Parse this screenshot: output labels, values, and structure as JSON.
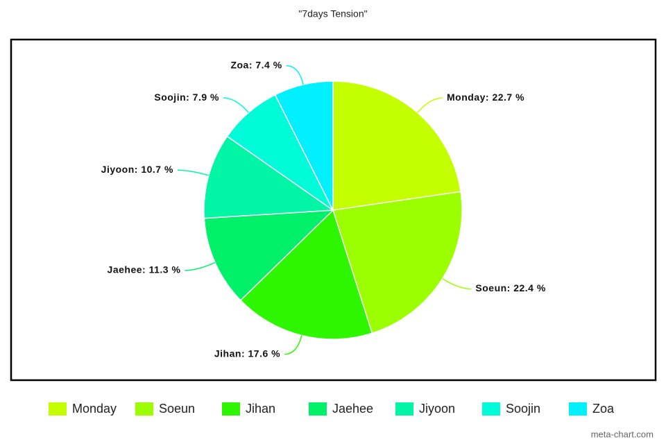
{
  "chart_data": {
    "type": "pie",
    "title": "\"7days Tension\"",
    "categories": [
      "Monday",
      "Soeun",
      "Jihan",
      "Jaehee",
      "Jiyoon",
      "Soojin",
      "Zoa"
    ],
    "values": [
      22.7,
      22.4,
      17.6,
      11.3,
      10.7,
      7.9,
      7.4
    ],
    "value_labels": [
      "Monday: 22.7 %",
      "Soeun: 22.4 %",
      "Jihan: 17.6 %",
      "Jaehee: 11.3 %",
      "Jiyoon: 10.7 %",
      "Soojin: 7.9 %",
      "Zoa: 7.4 %"
    ],
    "colors": [
      "#c4ff00",
      "#9bff00",
      "#2ef500",
      "#00f06a",
      "#00f5a5",
      "#00fbd8",
      "#00f0ff"
    ],
    "legend": "bottom",
    "watermark": "meta-chart.com"
  }
}
